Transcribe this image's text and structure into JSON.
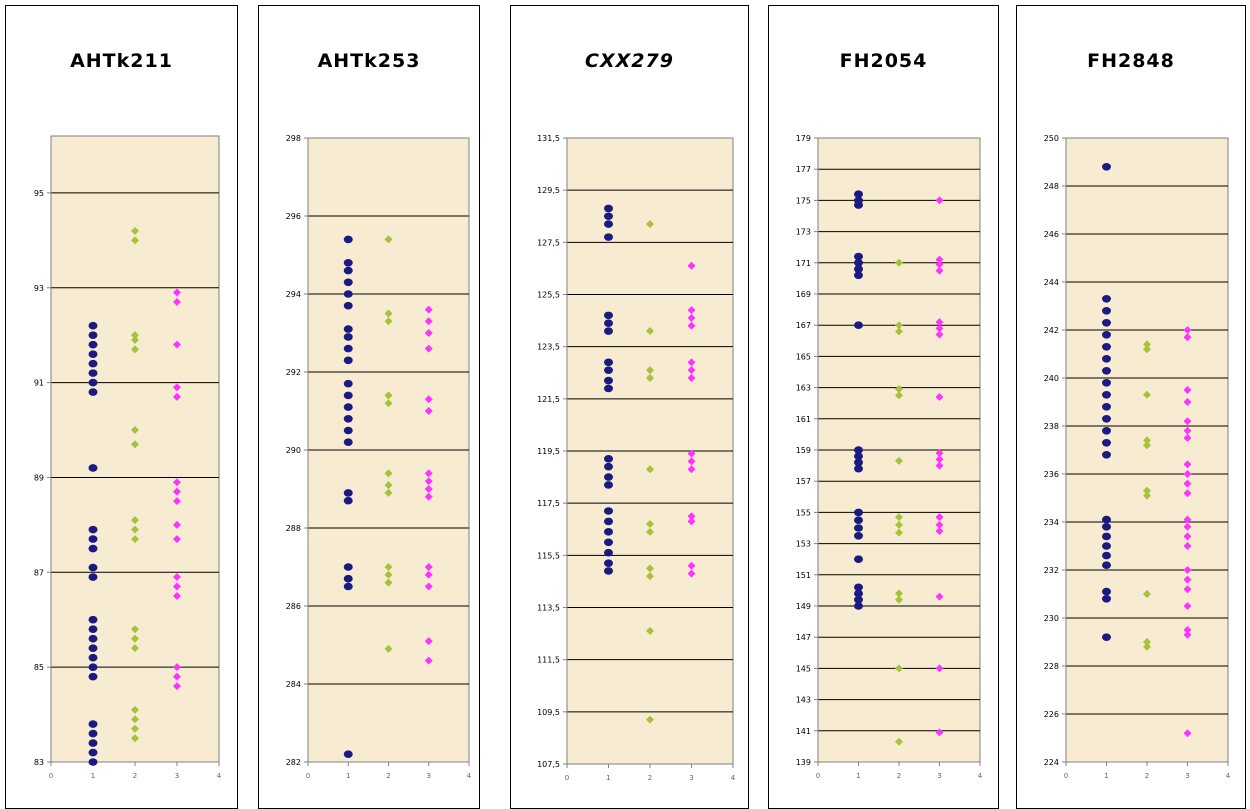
{
  "colors": {
    "series1": "#1a1a80",
    "series2": "#a5c23a",
    "series3": "#ff33ff",
    "plot_bg": "#f7ecd2",
    "gridline": "#000000"
  },
  "chart_data": [
    {
      "type": "scatter",
      "title": "AHTk211",
      "title_italic": false,
      "xlim": [
        0,
        4
      ],
      "xticks": [
        "0",
        "1",
        "2",
        "3",
        "4"
      ],
      "ylim": [
        83,
        96.2
      ],
      "yticks": [
        83,
        85,
        87,
        89,
        91,
        93,
        95
      ],
      "ytick_labels": [
        "83",
        "85",
        "87",
        "89",
        "91",
        "93",
        "95"
      ],
      "gridlines": [
        85,
        87,
        89,
        91,
        93,
        95
      ],
      "series": [
        {
          "x": 1,
          "values": [
            83.0,
            83.2,
            83.4,
            83.6,
            83.8,
            84.8,
            85.0,
            85.2,
            85.4,
            85.6,
            85.8,
            86.0,
            86.9,
            87.1,
            87.5,
            87.7,
            87.9,
            89.2,
            90.8,
            91.0,
            91.2,
            91.4,
            91.6,
            91.8,
            92.0,
            92.2
          ]
        },
        {
          "x": 2,
          "values": [
            83.5,
            83.7,
            83.9,
            84.1,
            85.4,
            85.6,
            85.8,
            87.7,
            87.9,
            88.1,
            89.7,
            90.0,
            91.7,
            91.9,
            92.0,
            94.0,
            94.2
          ]
        },
        {
          "x": 3,
          "values": [
            84.6,
            84.8,
            85.0,
            86.5,
            86.7,
            86.9,
            87.7,
            88.0,
            88.5,
            88.7,
            88.9,
            90.7,
            90.9,
            91.8,
            92.7,
            92.9
          ]
        }
      ]
    },
    {
      "type": "scatter",
      "title": "AHTk253",
      "title_italic": false,
      "xlim": [
        0,
        4
      ],
      "xticks": [
        "0",
        "1",
        "2",
        "3",
        "4"
      ],
      "ylim": [
        282,
        298
      ],
      "yticks": [
        282,
        284,
        286,
        288,
        290,
        292,
        294,
        296,
        298
      ],
      "ytick_labels": [
        "282",
        "284",
        "286",
        "288",
        "290",
        "292",
        "294",
        "296",
        "298"
      ],
      "gridlines": [
        284,
        286,
        288,
        290,
        292,
        294,
        296
      ],
      "series": [
        {
          "x": 1,
          "values": [
            282.2,
            286.5,
            286.7,
            287.0,
            288.7,
            288.9,
            290.2,
            290.5,
            290.8,
            291.1,
            291.4,
            291.7,
            292.3,
            292.6,
            292.9,
            293.1,
            293.7,
            294.0,
            294.3,
            294.6,
            294.8,
            295.4
          ]
        },
        {
          "x": 2,
          "values": [
            284.9,
            286.6,
            286.8,
            287.0,
            288.9,
            289.1,
            289.4,
            291.2,
            291.4,
            293.3,
            293.5,
            295.4
          ]
        },
        {
          "x": 3,
          "values": [
            284.6,
            285.1,
            286.5,
            286.8,
            287.0,
            288.8,
            289.0,
            289.2,
            289.4,
            291.0,
            291.3,
            292.6,
            293.0,
            293.3,
            293.6
          ]
        }
      ]
    },
    {
      "type": "scatter",
      "title": "CXX279",
      "title_italic": true,
      "xlim": [
        0,
        4
      ],
      "xticks": [
        "0",
        "1",
        "2",
        "3",
        "4"
      ],
      "ylim": [
        107.5,
        131.5
      ],
      "yticks": [
        107.5,
        109.5,
        111.5,
        113.5,
        115.5,
        117.5,
        119.5,
        121.5,
        123.5,
        125.5,
        127.5,
        129.5,
        131.5
      ],
      "ytick_labels": [
        "107,5",
        "109,5",
        "111,5",
        "113,5",
        "115,5",
        "117,5",
        "119,5",
        "121,5",
        "123,5",
        "125,5",
        "127,5",
        "129,5",
        "131,5"
      ],
      "gridlines": [
        109.5,
        111.5,
        113.5,
        115.5,
        117.5,
        119.5,
        121.5,
        123.5,
        125.5,
        127.5,
        129.5
      ],
      "series": [
        {
          "x": 1,
          "values": [
            114.9,
            115.2,
            115.6,
            116.0,
            116.4,
            116.8,
            117.2,
            118.2,
            118.5,
            118.9,
            119.2,
            121.9,
            122.2,
            122.6,
            122.9,
            124.1,
            124.4,
            124.7,
            127.7,
            128.2,
            128.5,
            128.8
          ]
        },
        {
          "x": 2,
          "values": [
            109.2,
            112.6,
            114.7,
            115.0,
            116.4,
            116.7,
            118.8,
            122.3,
            122.6,
            124.1,
            128.2
          ]
        },
        {
          "x": 3,
          "values": [
            114.8,
            115.1,
            116.8,
            117.0,
            118.8,
            119.1,
            119.4,
            122.3,
            122.6,
            122.9,
            124.3,
            124.6,
            124.9,
            126.6
          ]
        }
      ]
    },
    {
      "type": "scatter",
      "title": "FH2054",
      "title_italic": false,
      "xlim": [
        0,
        4
      ],
      "xticks": [
        "0",
        "1",
        "2",
        "3",
        "4"
      ],
      "ylim": [
        139,
        179
      ],
      "yticks": [
        139,
        141,
        143,
        145,
        147,
        149,
        151,
        153,
        155,
        157,
        159,
        161,
        163,
        165,
        167,
        169,
        171,
        173,
        175,
        177,
        179
      ],
      "ytick_labels": [
        "139",
        "141",
        "143",
        "145",
        "147",
        "149",
        "151",
        "153",
        "155",
        "157",
        "159",
        "161",
        "163",
        "165",
        "167",
        "169",
        "171",
        "173",
        "175",
        "177",
        "179"
      ],
      "gridlines": [
        141,
        143,
        145,
        147,
        149,
        151,
        153,
        155,
        157,
        159,
        161,
        163,
        165,
        167,
        169,
        171,
        173,
        175,
        177
      ],
      "series": [
        {
          "x": 1,
          "values": [
            149.0,
            149.4,
            149.8,
            150.2,
            152.0,
            153.5,
            154.0,
            154.5,
            155.0,
            157.8,
            158.2,
            158.6,
            159.0,
            167.0,
            170.2,
            170.6,
            171.0,
            171.4,
            174.7,
            175.0,
            175.4
          ]
        },
        {
          "x": 2,
          "values": [
            140.3,
            145.0,
            149.4,
            149.8,
            153.7,
            154.2,
            154.7,
            158.3,
            162.5,
            162.9,
            166.6,
            167.0,
            171.0
          ]
        },
        {
          "x": 3,
          "values": [
            140.9,
            145.0,
            149.6,
            153.8,
            154.2,
            154.7,
            158.0,
            158.4,
            158.8,
            162.4,
            166.4,
            166.8,
            167.2,
            170.5,
            170.9,
            171.2,
            175.0
          ]
        }
      ]
    },
    {
      "type": "scatter",
      "title": "FH2848",
      "title_italic": false,
      "xlim": [
        0,
        4
      ],
      "xticks": [
        "0",
        "1",
        "2",
        "3",
        "4"
      ],
      "ylim": [
        224,
        250
      ],
      "yticks": [
        224,
        226,
        228,
        230,
        232,
        234,
        236,
        238,
        240,
        242,
        244,
        246,
        248,
        250
      ],
      "ytick_labels": [
        "224",
        "226",
        "228",
        "230",
        "232",
        "234",
        "236",
        "238",
        "240",
        "242",
        "244",
        "246",
        "248",
        "250"
      ],
      "gridlines": [
        226,
        228,
        230,
        232,
        234,
        236,
        238,
        240,
        242,
        244,
        246,
        248
      ],
      "series": [
        {
          "x": 1,
          "values": [
            229.2,
            230.8,
            231.1,
            232.2,
            232.6,
            233.0,
            233.4,
            233.8,
            234.1,
            236.8,
            237.3,
            237.8,
            238.3,
            238.8,
            239.3,
            239.8,
            240.3,
            240.8,
            241.3,
            241.8,
            242.3,
            242.8,
            243.3,
            248.8
          ]
        },
        {
          "x": 2,
          "values": [
            228.8,
            229.0,
            231.0,
            235.1,
            235.3,
            237.2,
            237.4,
            239.3,
            241.2,
            241.4
          ]
        },
        {
          "x": 3,
          "values": [
            225.2,
            229.3,
            229.5,
            230.5,
            231.2,
            231.6,
            232.0,
            233.0,
            233.4,
            233.8,
            234.1,
            235.2,
            235.6,
            236.0,
            236.4,
            237.5,
            237.8,
            238.2,
            239.0,
            239.5,
            241.7,
            242.0
          ]
        }
      ]
    }
  ]
}
